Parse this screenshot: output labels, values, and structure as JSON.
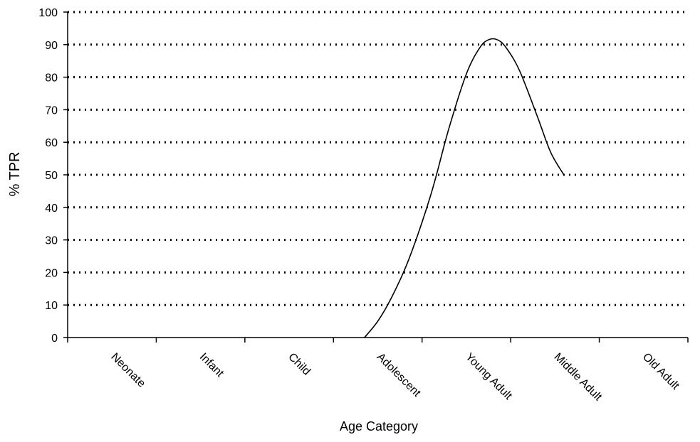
{
  "chart_data": {
    "type": "line",
    "title": "",
    "xlabel": "Age Category",
    "ylabel": "% TPR",
    "categories": [
      "Neonate",
      "Infant",
      "Child",
      "Adolescent",
      "Young Adult",
      "Middle Adult",
      "Old Adult"
    ],
    "ylim": [
      0,
      100
    ],
    "yticks": [
      "0",
      "10",
      "20",
      "30",
      "40",
      "50",
      "60",
      "70",
      "80",
      "90",
      "100"
    ],
    "grid": true,
    "legend": "none",
    "series": [
      {
        "color": "#000000",
        "points": [
          {
            "x": 3.35,
            "y": 0
          },
          {
            "x": 3.5,
            "y": 5
          },
          {
            "x": 3.65,
            "y": 12
          },
          {
            "x": 3.85,
            "y": 24
          },
          {
            "x": 4.1,
            "y": 44
          },
          {
            "x": 4.3,
            "y": 64
          },
          {
            "x": 4.5,
            "y": 81
          },
          {
            "x": 4.65,
            "y": 89
          },
          {
            "x": 4.75,
            "y": 91.5
          },
          {
            "x": 4.85,
            "y": 91.5
          },
          {
            "x": 4.95,
            "y": 89
          },
          {
            "x": 5.1,
            "y": 82
          },
          {
            "x": 5.3,
            "y": 68
          },
          {
            "x": 5.45,
            "y": 57
          },
          {
            "x": 5.6,
            "y": 50
          }
        ]
      }
    ]
  }
}
